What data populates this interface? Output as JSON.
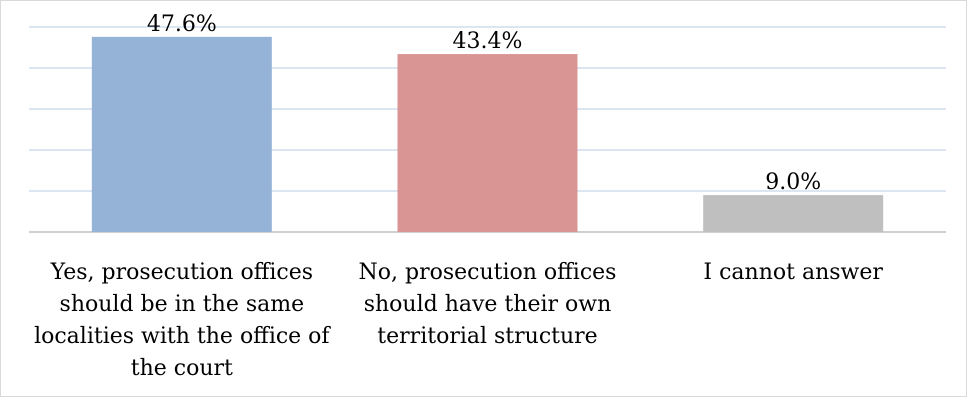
{
  "chart_data": {
    "type": "bar",
    "categories": [
      [
        "Yes, prosecution offices",
        "should be in the same",
        "localities with the office of",
        "the court"
      ],
      [
        "No, prosecution offices",
        "should have their own",
        "territorial structure"
      ],
      [
        "I cannot answer"
      ]
    ],
    "values": [
      47.6,
      43.4,
      9.0
    ],
    "data_labels": [
      "47.6%",
      "43.4%",
      "9.0%"
    ],
    "colors": [
      "#95b3d7",
      "#d99594",
      "#bfbfbf"
    ],
    "gridline_color": "#b8cce4",
    "ylim": [
      0,
      50
    ],
    "grid": true,
    "legend": "none",
    "title": "",
    "xlabel": "",
    "ylabel": ""
  }
}
